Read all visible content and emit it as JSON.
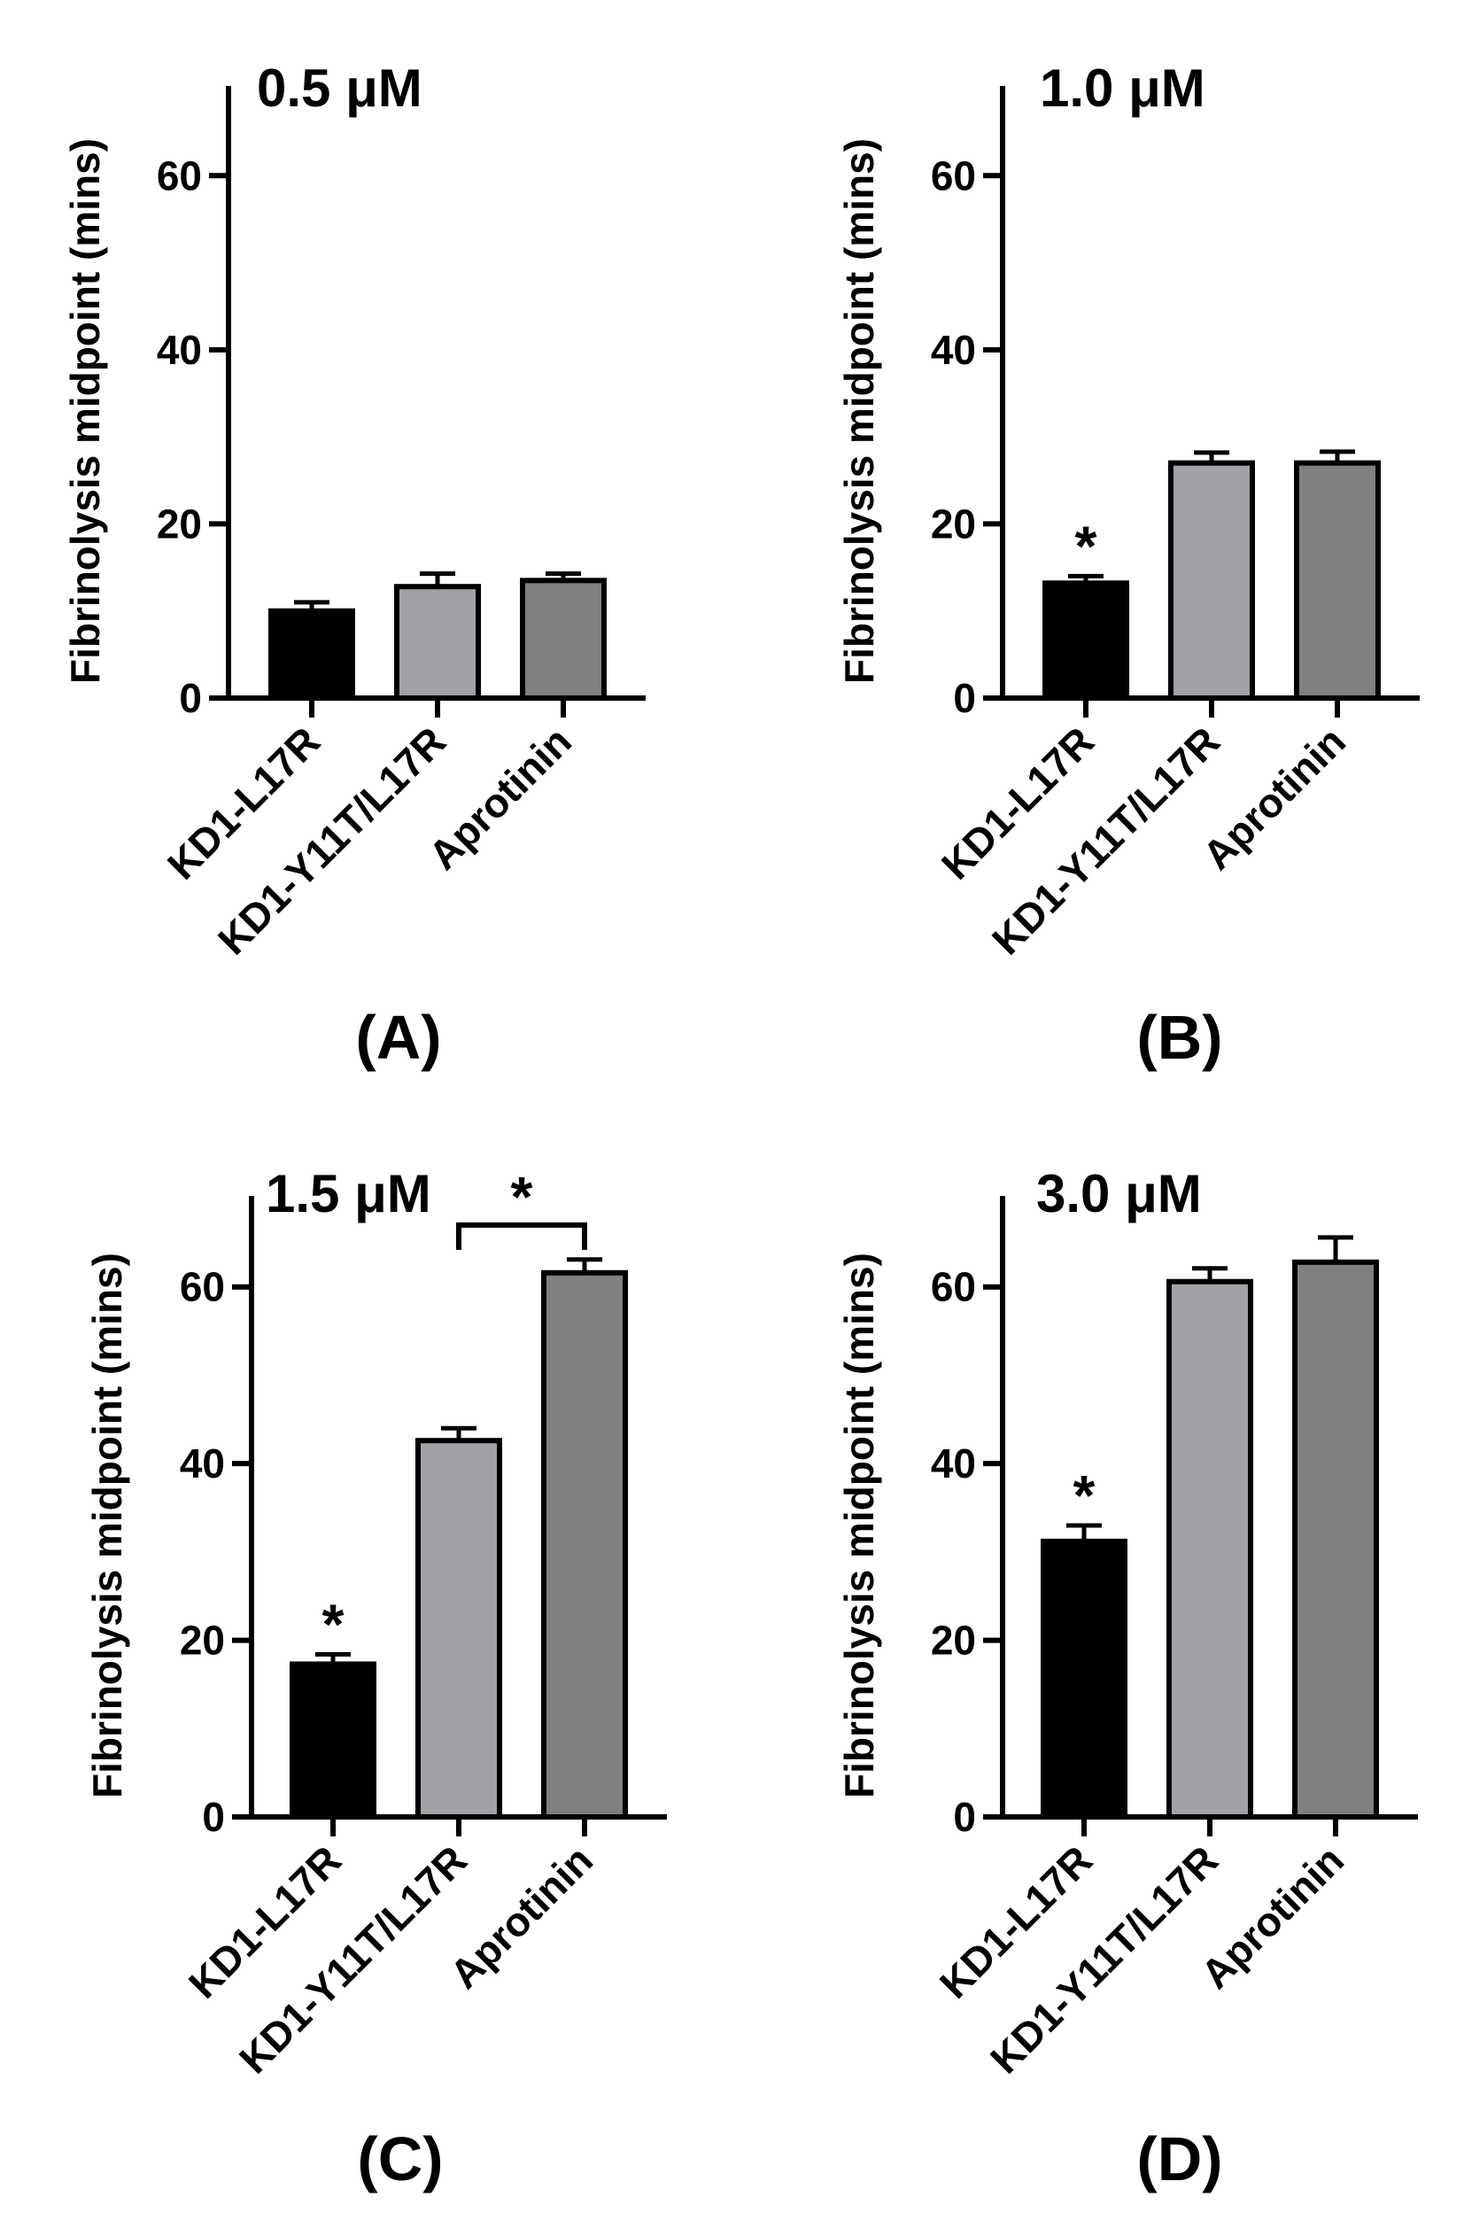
{
  "figure": {
    "colors": {
      "black": "#000000",
      "light_gray": "#a2a1a6",
      "dark_gray": "#808080",
      "axis": "#000000"
    }
  },
  "chart_data": [
    {
      "type": "bar",
      "panel_letter": "(A)",
      "concentration_label": "0.5 μM",
      "categories": [
        "KD1-L17R",
        "KD1-Y11T/L17R",
        "Aprotinin"
      ],
      "values": [
        10,
        12.8,
        13.5
      ],
      "errors": [
        1.0,
        1.5,
        0.8
      ],
      "bar_colors": [
        "#000000",
        "#a2a1a6",
        "#808080"
      ],
      "significance": [],
      "ylabel": "Fibrinolysis midpoint (mins)",
      "ylim": [
        0,
        70
      ],
      "yticks": [
        0,
        20,
        40,
        60
      ],
      "ytick_labels": [
        "0",
        "20",
        "40",
        "60"
      ],
      "grid": false
    },
    {
      "type": "bar",
      "panel_letter": "(B)",
      "concentration_label": "1.0 μM",
      "categories": [
        "KD1-L17R",
        "KD1-Y11T/L17R",
        "Aprotinin"
      ],
      "values": [
        13.2,
        27,
        27
      ],
      "errors": [
        0.8,
        1.2,
        1.3
      ],
      "bar_colors": [
        "#000000",
        "#a2a1a6",
        "#808080"
      ],
      "significance": [
        {
          "category_index": 0,
          "symbol": "*"
        }
      ],
      "ylabel": "Fibrinolysis midpoint (mins)",
      "ylim": [
        0,
        70
      ],
      "yticks": [
        0,
        20,
        40,
        60
      ],
      "ytick_labels": [
        "0",
        "20",
        "40",
        "60"
      ],
      "grid": false
    },
    {
      "type": "bar",
      "panel_letter": "(C)",
      "concentration_label": "1.5 μM",
      "categories": [
        "KD1-L17R",
        "KD1-Y11T/L17R",
        "Aprotinin"
      ],
      "values": [
        17.3,
        42.6,
        61.6
      ],
      "errors": [
        1.1,
        1.4,
        1.5
      ],
      "bar_colors": [
        "#000000",
        "#a2a1a6",
        "#808080"
      ],
      "significance": [
        {
          "category_index": 0,
          "symbol": "*"
        }
      ],
      "bracket": {
        "from_index": 1,
        "to_index": 2,
        "level": 67,
        "symbol": "*"
      },
      "ylabel": "Fibrinolysis midpoint (mins)",
      "ylim": [
        0,
        70
      ],
      "yticks": [
        0,
        20,
        40,
        60
      ],
      "ytick_labels": [
        "0",
        "20",
        "40",
        "60"
      ],
      "grid": false
    },
    {
      "type": "bar",
      "panel_letter": "(D)",
      "concentration_label": "3.0 μM",
      "categories": [
        "KD1-L17R",
        "KD1-Y11T/L17R",
        "Aprotinin"
      ],
      "values": [
        31.2,
        60.6,
        62.8
      ],
      "errors": [
        1.8,
        1.5,
        2.8
      ],
      "bar_colors": [
        "#000000",
        "#a2a1a6",
        "#808080"
      ],
      "significance": [
        {
          "category_index": 0,
          "symbol": "*"
        }
      ],
      "ylabel": "Fibrinolysis midpoint (mins)",
      "ylim": [
        0,
        70
      ],
      "yticks": [
        0,
        20,
        40,
        60
      ],
      "ytick_labels": [
        "0",
        "20",
        "40",
        "60"
      ],
      "grid": false
    }
  ]
}
